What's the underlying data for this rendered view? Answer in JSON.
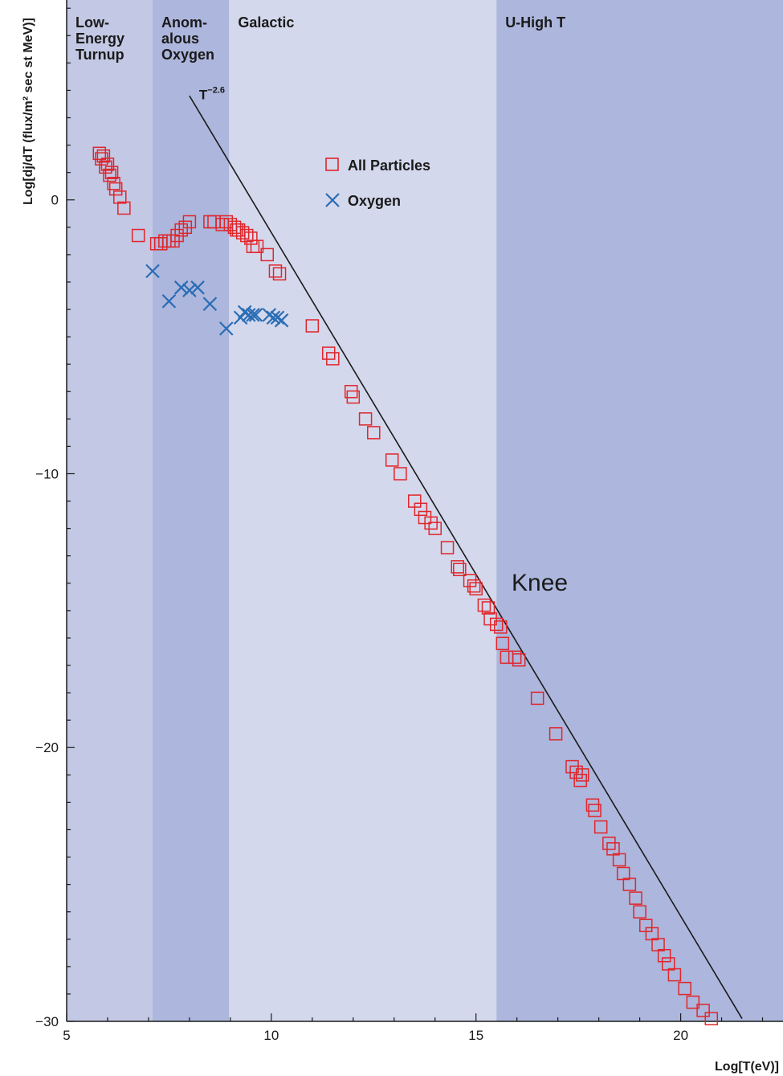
{
  "chart_data": {
    "type": "scatter",
    "xlabel": "Log[T(eV)]",
    "ylabel": "Log[dj/dT (flux/m² sec st MeV)]",
    "xlim": [
      5,
      22.5
    ],
    "ylim": [
      -30,
      7.3
    ],
    "x_ticks": [
      5,
      10,
      15,
      20
    ],
    "y_ticks": [
      0,
      -10,
      -20,
      -30
    ],
    "regions": [
      {
        "label": "Low-\nEnergy\nTurnup",
        "x_range": [
          5,
          7.1
        ],
        "color": "#c3c8e4"
      },
      {
        "label": "Anom-\nalous\nOxygen",
        "x_range": [
          7.1,
          8.97
        ],
        "color": "#adb6dc"
      },
      {
        "label": "Galactic",
        "x_range": [
          8.97,
          15.5
        ],
        "color": "#d4d8ec"
      },
      {
        "label": "U-High T",
        "x_range": [
          15.5,
          22.5
        ],
        "color": "#adb6dc"
      }
    ],
    "power_law_line": {
      "label": "T",
      "exponent_label": "−2.6",
      "from": [
        8.0,
        3.8
      ],
      "to": [
        21.5,
        -29.9
      ],
      "color": "#1a1a1a"
    },
    "annotations": [
      {
        "text": "Knee"
      }
    ],
    "legend_position": "top-center",
    "series": [
      {
        "name": "All Particles",
        "marker": "open-square",
        "color": "#e0262b",
        "points": [
          [
            5.8,
            1.7
          ],
          [
            5.85,
            1.5
          ],
          [
            5.9,
            1.6
          ],
          [
            5.95,
            1.2
          ],
          [
            6.0,
            1.3
          ],
          [
            6.05,
            0.9
          ],
          [
            6.1,
            1.0
          ],
          [
            6.15,
            0.6
          ],
          [
            6.2,
            0.4
          ],
          [
            6.3,
            0.1
          ],
          [
            6.4,
            -0.3
          ],
          [
            6.75,
            -1.3
          ],
          [
            7.2,
            -1.6
          ],
          [
            7.3,
            -1.6
          ],
          [
            7.4,
            -1.5
          ],
          [
            7.5,
            -1.5
          ],
          [
            7.6,
            -1.5
          ],
          [
            7.7,
            -1.3
          ],
          [
            7.8,
            -1.1
          ],
          [
            7.9,
            -1.0
          ],
          [
            8.0,
            -0.8
          ],
          [
            8.5,
            -0.8
          ],
          [
            8.6,
            -0.8
          ],
          [
            8.8,
            -0.9
          ],
          [
            8.9,
            -0.8
          ],
          [
            9.0,
            -0.9
          ],
          [
            9.1,
            -1.0
          ],
          [
            9.15,
            -1.1
          ],
          [
            9.2,
            -1.1
          ],
          [
            9.3,
            -1.2
          ],
          [
            9.4,
            -1.3
          ],
          [
            9.5,
            -1.4
          ],
          [
            9.55,
            -1.7
          ],
          [
            9.65,
            -1.7
          ],
          [
            9.9,
            -2.0
          ],
          [
            10.1,
            -2.6
          ],
          [
            10.2,
            -2.7
          ],
          [
            11.0,
            -4.6
          ],
          [
            11.4,
            -5.6
          ],
          [
            11.5,
            -5.8
          ],
          [
            11.95,
            -7.0
          ],
          [
            12.0,
            -7.2
          ],
          [
            12.3,
            -8.0
          ],
          [
            12.5,
            -8.5
          ],
          [
            12.95,
            -9.5
          ],
          [
            13.15,
            -10.0
          ],
          [
            13.5,
            -11.0
          ],
          [
            13.65,
            -11.3
          ],
          [
            13.75,
            -11.6
          ],
          [
            13.9,
            -11.8
          ],
          [
            14.0,
            -12.0
          ],
          [
            14.3,
            -12.7
          ],
          [
            14.55,
            -13.4
          ],
          [
            14.6,
            -13.5
          ],
          [
            14.85,
            -13.9
          ],
          [
            14.95,
            -14.1
          ],
          [
            15.0,
            -14.2
          ],
          [
            15.2,
            -14.8
          ],
          [
            15.3,
            -14.9
          ],
          [
            15.35,
            -15.3
          ],
          [
            15.5,
            -15.5
          ],
          [
            15.6,
            -15.6
          ],
          [
            15.65,
            -16.2
          ],
          [
            15.75,
            -16.7
          ],
          [
            15.95,
            -16.7
          ],
          [
            16.05,
            -16.8
          ],
          [
            16.5,
            -18.2
          ],
          [
            16.95,
            -19.5
          ],
          [
            17.35,
            -20.7
          ],
          [
            17.45,
            -20.9
          ],
          [
            17.55,
            -21.2
          ],
          [
            17.6,
            -21.0
          ],
          [
            17.85,
            -22.1
          ],
          [
            17.9,
            -22.3
          ],
          [
            18.05,
            -22.9
          ],
          [
            18.25,
            -23.5
          ],
          [
            18.35,
            -23.7
          ],
          [
            18.5,
            -24.1
          ],
          [
            18.6,
            -24.6
          ],
          [
            18.75,
            -25.0
          ],
          [
            18.9,
            -25.5
          ],
          [
            19.0,
            -26.0
          ],
          [
            19.15,
            -26.5
          ],
          [
            19.3,
            -26.8
          ],
          [
            19.45,
            -27.2
          ],
          [
            19.6,
            -27.6
          ],
          [
            19.7,
            -27.9
          ],
          [
            19.85,
            -28.3
          ],
          [
            20.1,
            -28.8
          ],
          [
            20.3,
            -29.3
          ],
          [
            20.55,
            -29.6
          ],
          [
            20.75,
            -29.9
          ]
        ]
      },
      {
        "name": "Oxygen",
        "marker": "x",
        "color": "#2a6db5",
        "points": [
          [
            7.1,
            -2.6
          ],
          [
            7.5,
            -3.7
          ],
          [
            7.8,
            -3.2
          ],
          [
            8.0,
            -3.3
          ],
          [
            8.2,
            -3.2
          ],
          [
            8.5,
            -3.8
          ],
          [
            8.9,
            -4.7
          ],
          [
            9.25,
            -4.3
          ],
          [
            9.35,
            -4.1
          ],
          [
            9.45,
            -4.2
          ],
          [
            9.55,
            -4.2
          ],
          [
            9.62,
            -4.2
          ],
          [
            9.95,
            -4.2
          ],
          [
            10.05,
            -4.3
          ],
          [
            10.15,
            -4.3
          ],
          [
            10.25,
            -4.4
          ]
        ]
      }
    ]
  }
}
